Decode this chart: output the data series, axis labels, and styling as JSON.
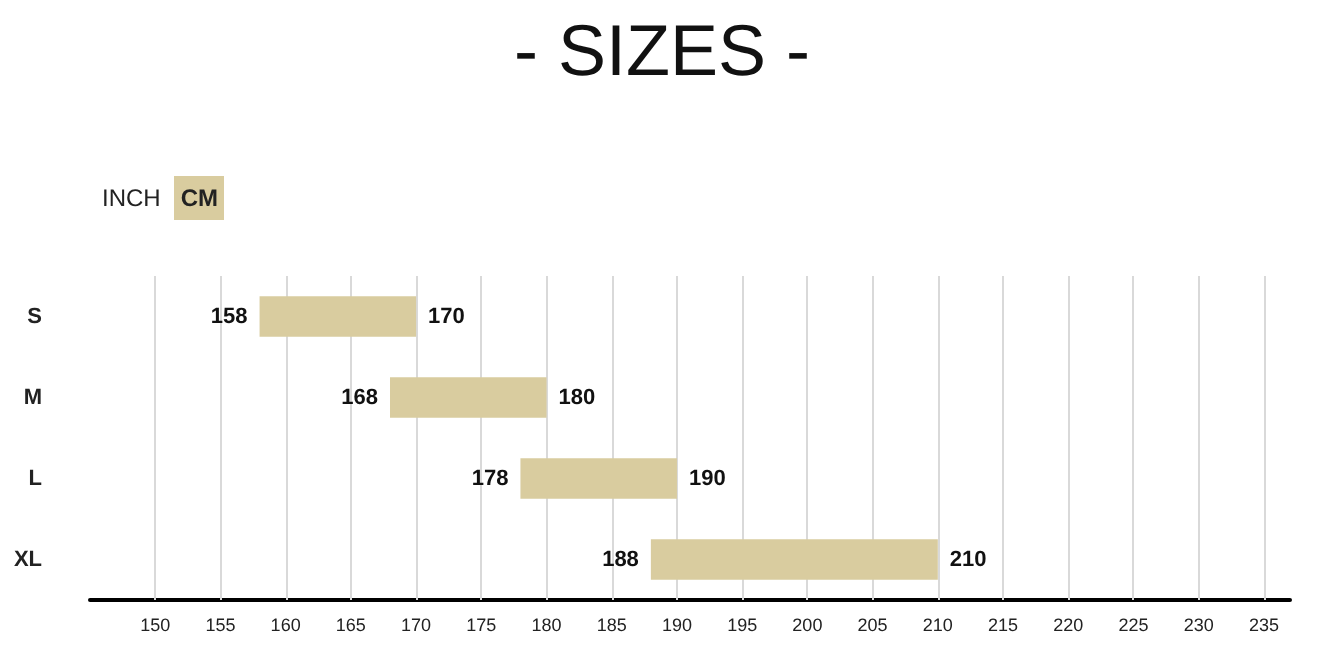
{
  "chart_data": {
    "type": "bar",
    "orientation": "horizontal",
    "title": "- SIZES -",
    "categories": [
      "S",
      "M",
      "L",
      "XL"
    ],
    "base": [
      158,
      168,
      178,
      188
    ],
    "values": [
      12,
      12,
      12,
      22
    ],
    "color": "#d9cc9f",
    "xlim": [
      145,
      237
    ],
    "xticks": [
      150,
      155,
      160,
      165,
      170,
      175,
      180,
      185,
      190,
      195,
      200,
      205,
      210,
      215,
      220,
      225,
      230,
      235
    ],
    "grid": "x",
    "annotations": [
      "INCH",
      "CM",
      {
        "text": "158",
        "x": 158,
        "y": "S"
      },
      {
        "text": "170",
        "x": 170,
        "y": "S"
      },
      {
        "text": "168",
        "x": 168,
        "y": "M"
      },
      {
        "text": "180",
        "x": 180,
        "y": "M"
      },
      {
        "text": "178",
        "x": 178,
        "y": "L"
      },
      {
        "text": "190",
        "x": 190,
        "y": "L"
      },
      {
        "text": "188",
        "x": 188,
        "y": "XL"
      },
      {
        "text": "210",
        "x": 210,
        "y": "XL"
      }
    ]
  }
}
